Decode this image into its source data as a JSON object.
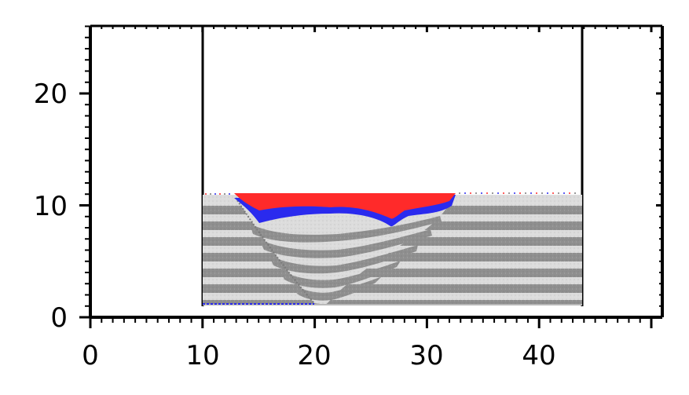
{
  "axes": {
    "x_ticks": [
      "0",
      "10",
      "20",
      "30",
      "40"
    ],
    "y_ticks": [
      "0",
      "10",
      "20"
    ]
  },
  "colors": {
    "light_layer": "#dcdcdc",
    "dark_layer": "#8f8f8f",
    "red_material": "#ff2a2a",
    "blue_material": "#2a2aee",
    "axis": "#000000"
  }
}
